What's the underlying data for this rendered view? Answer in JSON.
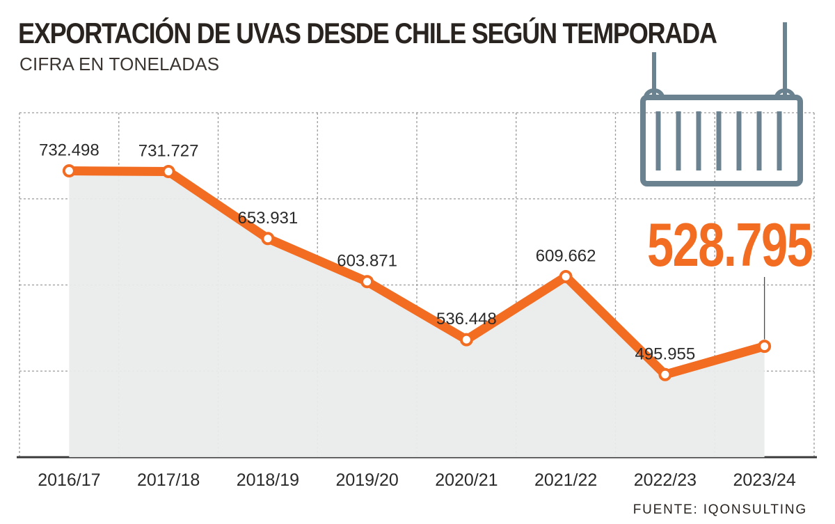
{
  "title": "EXPORTACIÓN DE UVAS DESDE CHILE SEGÚN TEMPORADA",
  "subtitle": "CIFRA EN TONELADAS",
  "source": "FUENTE: IQONSULTING",
  "highlight_value": "528.795",
  "icon": "shipping-container-icon",
  "colors": {
    "line": "#f26c22",
    "area": "#eaecec",
    "grid": "#9a9a9a",
    "icon": "#6b8290",
    "text": "#2a2420"
  },
  "chart_data": {
    "type": "line",
    "title": "EXPORTACIÓN DE UVAS DESDE CHILE SEGÚN TEMPORADA",
    "subtitle": "CIFRA EN TONELADAS",
    "categories": [
      "2016/17",
      "2017/18",
      "2018/19",
      "2019/20",
      "2020/21",
      "2021/22",
      "2022/23",
      "2023/24"
    ],
    "values": [
      732498,
      731727,
      653931,
      603871,
      536448,
      609662,
      495955,
      528795
    ],
    "data_labels": [
      "732.498",
      "731.727",
      "653.931",
      "603.871",
      "536.448",
      "609.662",
      "495.955",
      "528.795"
    ],
    "xlabel": "",
    "ylabel": "",
    "ylim": [
      400000,
      800000
    ],
    "grid": true,
    "legend": "none"
  }
}
